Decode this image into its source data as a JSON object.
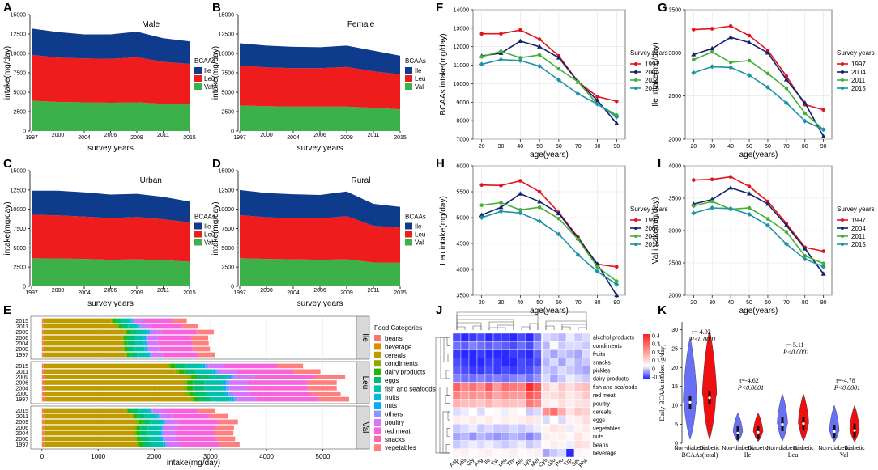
{
  "colors": {
    "Ile": "#0f3b8c",
    "Leu": "#ee1c1c",
    "Val": "#3cb14a",
    "y1997": "#e3121f",
    "y2004": "#14216b",
    "y2011": "#45b035",
    "y2015": "#1c93a6",
    "violinBlue": "#6870f5",
    "violinRed": "#ee1010"
  },
  "chart_data": [
    {
      "panel": "A",
      "type": "area",
      "title": "Male",
      "xlabel": "survey years",
      "ylabel": "intake(mg/day)",
      "ylim": [
        0,
        15000
      ],
      "yticks": [
        0,
        2500,
        5000,
        7500,
        10000,
        12500,
        15000
      ],
      "categories": [
        "1997",
        "2000",
        "2004",
        "2006",
        "2009",
        "2011",
        "2015"
      ],
      "legend_title": "BCAAs",
      "legend": [
        "Ile",
        "Leu",
        "Val"
      ],
      "series": [
        {
          "name": "Val",
          "values": [
            3900,
            3750,
            3700,
            3650,
            3700,
            3500,
            3450
          ]
        },
        {
          "name": "Leu",
          "values": [
            5900,
            5700,
            5650,
            5650,
            5800,
            5400,
            5200
          ]
        },
        {
          "name": "Ile",
          "values": [
            3400,
            3300,
            3100,
            3150,
            3300,
            3050,
            2900
          ]
        }
      ]
    },
    {
      "panel": "B",
      "type": "area",
      "title": "Female",
      "xlabel": "survey years",
      "ylabel": "intake(mg/day)",
      "ylim": [
        0,
        15000
      ],
      "yticks": [
        0,
        2500,
        5000,
        7500,
        10000,
        12500,
        15000
      ],
      "categories": [
        "1997",
        "2000",
        "2004",
        "2006",
        "2009",
        "2011",
        "2015"
      ],
      "legend_title": "BCAAs",
      "legend": [
        "Ile",
        "Leu",
        "Val"
      ],
      "series": [
        {
          "name": "Val",
          "values": [
            3300,
            3200,
            3150,
            3150,
            3150,
            3000,
            2800
          ]
        },
        {
          "name": "Leu",
          "values": [
            5150,
            5000,
            4950,
            4950,
            5100,
            4700,
            4500
          ]
        },
        {
          "name": "Ile",
          "values": [
            2850,
            2800,
            2750,
            2700,
            2750,
            2650,
            2400
          ]
        }
      ]
    },
    {
      "panel": "C",
      "type": "area",
      "title": "Urban",
      "xlabel": "survey years",
      "ylabel": "intake(mg/day)",
      "ylim": [
        0,
        15000
      ],
      "yticks": [
        0,
        2500,
        5000,
        7500,
        10000,
        12500,
        15000
      ],
      "categories": [
        "1997",
        "2000",
        "2004",
        "2006",
        "2009",
        "2011",
        "2015"
      ],
      "legend_title": "BCAAs",
      "legend": [
        "Ile",
        "Leu",
        "Val"
      ],
      "series": [
        {
          "name": "Val",
          "values": [
            3650,
            3600,
            3550,
            3450,
            3500,
            3400,
            3200
          ]
        },
        {
          "name": "Leu",
          "values": [
            5650,
            5600,
            5500,
            5400,
            5500,
            5300,
            5100
          ]
        },
        {
          "name": "Ile",
          "values": [
            3100,
            3200,
            3150,
            3050,
            3000,
            2900,
            2700
          ]
        }
      ]
    },
    {
      "panel": "D",
      "type": "area",
      "title": "Rural",
      "xlabel": "survey years",
      "ylabel": "intake(mg/day)",
      "ylim": [
        0,
        15000
      ],
      "yticks": [
        0,
        2500,
        5000,
        7500,
        10000,
        12500,
        15000
      ],
      "categories": [
        "1997",
        "2000",
        "2004",
        "2006",
        "2009",
        "2011",
        "2015"
      ],
      "legend_title": "BCAAs",
      "legend": [
        "Ile",
        "Leu",
        "Val"
      ],
      "series": [
        {
          "name": "Val",
          "values": [
            3650,
            3550,
            3500,
            3450,
            3500,
            3100,
            3050
          ]
        },
        {
          "name": "Leu",
          "values": [
            5600,
            5400,
            5350,
            5350,
            5600,
            4750,
            4550
          ]
        },
        {
          "name": "Ile",
          "values": [
            3250,
            3150,
            3100,
            3050,
            3200,
            2850,
            2700
          ]
        }
      ]
    },
    {
      "panel": "F",
      "type": "line",
      "xlabel": "age(years)",
      "ylabel": "BCAAs intake(mg/day)",
      "ylim": [
        7000,
        14000
      ],
      "yticks": [
        7000,
        8000,
        9000,
        10000,
        11000,
        12000,
        13000,
        14000
      ],
      "x": [
        20,
        30,
        40,
        50,
        60,
        70,
        80,
        90
      ],
      "legend_title": "Survey years",
      "series": [
        {
          "name": "1997",
          "values": [
            12700,
            12700,
            12900,
            12400,
            11500,
            10100,
            9300,
            9050
          ]
        },
        {
          "name": "2004",
          "values": [
            11500,
            11650,
            12300,
            12000,
            11400,
            10100,
            9100,
            7850
          ]
        },
        {
          "name": "2011",
          "values": [
            11450,
            11750,
            11400,
            11550,
            10800,
            10100,
            8900,
            8300
          ]
        },
        {
          "name": "2015",
          "values": [
            11050,
            11300,
            11250,
            10950,
            10200,
            9450,
            8900,
            8200
          ]
        }
      ]
    },
    {
      "panel": "G",
      "type": "line",
      "xlabel": "age(years)",
      "ylabel": "Ile intake(mg/day)",
      "ylim": [
        2000,
        3500
      ],
      "yticks": [
        2000,
        2500,
        3000,
        3500
      ],
      "x": [
        20,
        30,
        40,
        50,
        60,
        70,
        80,
        90
      ],
      "legend_title": "Survey years",
      "series": [
        {
          "name": "1997",
          "values": [
            3270,
            3280,
            3310,
            3200,
            3030,
            2730,
            2400,
            2340
          ]
        },
        {
          "name": "2004",
          "values": [
            2980,
            3050,
            3180,
            3120,
            3000,
            2690,
            2420,
            2030
          ]
        },
        {
          "name": "2011",
          "values": [
            2920,
            3010,
            2890,
            2910,
            2760,
            2590,
            2300,
            2110
          ]
        },
        {
          "name": "2015",
          "values": [
            2770,
            2840,
            2830,
            2740,
            2600,
            2420,
            2210,
            2110
          ]
        }
      ]
    },
    {
      "panel": "H",
      "type": "line",
      "xlabel": "age(years)",
      "ylabel": "Leu intake(mg/day)",
      "ylim": [
        3500,
        6000
      ],
      "yticks": [
        3500,
        4000,
        4500,
        5000,
        5500,
        6000
      ],
      "x": [
        20,
        30,
        40,
        50,
        60,
        70,
        80,
        90
      ],
      "legend_title": "Survey years",
      "series": [
        {
          "name": "1997",
          "values": [
            5630,
            5620,
            5710,
            5500,
            5100,
            4620,
            4100,
            4050
          ]
        },
        {
          "name": "2004",
          "values": [
            5050,
            5200,
            5460,
            5310,
            5080,
            4600,
            4100,
            3500
          ]
        },
        {
          "name": "2011",
          "values": [
            5240,
            5290,
            5150,
            5200,
            4980,
            4580,
            4050,
            3770
          ]
        },
        {
          "name": "2015",
          "values": [
            5000,
            5120,
            5090,
            4930,
            4680,
            4280,
            3960,
            3710
          ]
        }
      ]
    },
    {
      "panel": "I",
      "type": "line",
      "xlabel": "age(years)",
      "ylabel": "Val intake(mg/day)",
      "ylim": [
        2000,
        4000
      ],
      "yticks": [
        2000,
        2500,
        3000,
        3500,
        4000
      ],
      "x": [
        20,
        30,
        40,
        50,
        60,
        70,
        80,
        90
      ],
      "legend_title": "Survey years",
      "series": [
        {
          "name": "1997",
          "values": [
            3780,
            3790,
            3830,
            3680,
            3450,
            3110,
            2740,
            2680
          ]
        },
        {
          "name": "2004",
          "values": [
            3410,
            3480,
            3660,
            3570,
            3410,
            3080,
            2720,
            2330
          ]
        },
        {
          "name": "2011",
          "values": [
            3380,
            3450,
            3330,
            3350,
            3180,
            2980,
            2610,
            2490
          ]
        },
        {
          "name": "2015",
          "values": [
            3270,
            3350,
            3340,
            3250,
            3080,
            2790,
            2560,
            2440
          ]
        }
      ]
    },
    {
      "panel": "E",
      "type": "bar",
      "orientation": "horizontal",
      "stacked": true,
      "xlabel": "intake(mg/day)",
      "xlim": [
        0,
        5600
      ],
      "xticks": [
        0,
        1000,
        2000,
        3000,
        4000,
        5000
      ],
      "legend_title": "Food Categories",
      "categories_legend": [
        "beans",
        "beverage",
        "cereals",
        "condiments",
        "dairy products",
        "eggs",
        "fish and seafoods",
        "fruits",
        "nuts",
        "others",
        "poultry",
        "red meat",
        "snacks",
        "vegetables"
      ],
      "category_colors": [
        "#f8766d",
        "#e18a00",
        "#be9c00",
        "#8cab00",
        "#24b700",
        "#00be70",
        "#00c1ab",
        "#00bbda",
        "#00acfc",
        "#8b93ff",
        "#d575fe",
        "#f962dd",
        "#ff65ac",
        "#ff7f7f"
      ],
      "facets": [
        {
          "name": "Ile",
          "years": [
            "2015",
            "2011",
            "2009",
            "2006",
            "2004",
            "2000",
            "1997"
          ],
          "totals": [
            2580,
            2780,
            3060,
            2960,
            2970,
            2990,
            3080
          ]
        },
        {
          "name": "Leu",
          "years": [
            "2015",
            "2011",
            "2009",
            "2006",
            "2004",
            "2000",
            "1997"
          ],
          "totals": [
            4650,
            4960,
            5400,
            5250,
            5250,
            5320,
            5470
          ]
        },
        {
          "name": "Val",
          "years": [
            "2015",
            "2011",
            "2009",
            "2006",
            "2004",
            "2000",
            "1997"
          ],
          "totals": [
            3090,
            3320,
            3490,
            3420,
            3410,
            3440,
            3520
          ]
        }
      ],
      "composition_fractions": [
        0.006,
        0.004,
        0.47,
        0.012,
        0.02,
        0.04,
        0.06,
        0.005,
        0.008,
        0.012,
        0.06,
        0.2,
        0.005,
        0.098
      ]
    },
    {
      "panel": "J",
      "type": "heatmap",
      "rows": [
        "alcohol products",
        "condiments",
        "fruits",
        "snacks",
        "pickles",
        "dairy products",
        "fish and seafoods",
        "red meat",
        "poultry",
        "cereals",
        "eggs",
        "vegetables",
        "nuts",
        "beans",
        "beverage"
      ],
      "columns": [
        "Asp",
        "His",
        "Gly",
        "Arg",
        "Ile",
        "Tyr",
        "Leu",
        "Thr",
        "Ala",
        "Lys",
        "Met",
        "Cys",
        "Glu",
        "Pro",
        "Trp",
        "Ser",
        "Phe"
      ],
      "colorbar_ticks": [
        "0.4",
        "0.3",
        "0.2",
        "0.1",
        "0",
        "-0.1"
      ],
      "values": [
        [
          -0.1,
          -0.12,
          -0.11,
          -0.1,
          -0.12,
          -0.11,
          -0.11,
          -0.12,
          -0.1,
          -0.12,
          -0.08,
          -0.02,
          -0.03,
          -0.04,
          -0.01,
          -0.03,
          -0.02
        ],
        [
          -0.08,
          -0.09,
          -0.07,
          -0.08,
          -0.09,
          -0.08,
          -0.09,
          -0.1,
          -0.08,
          -0.1,
          -0.06,
          -0.04,
          0.01,
          -0.03,
          -0.02,
          -0.02,
          -0.03
        ],
        [
          -0.11,
          -0.12,
          -0.12,
          -0.11,
          -0.12,
          -0.12,
          -0.13,
          -0.11,
          -0.11,
          -0.12,
          -0.09,
          -0.03,
          -0.05,
          -0.03,
          -0.04,
          -0.05,
          -0.02
        ],
        [
          -0.1,
          -0.11,
          -0.12,
          -0.12,
          -0.11,
          -0.11,
          -0.12,
          -0.12,
          -0.1,
          -0.11,
          -0.1,
          -0.04,
          -0.02,
          -0.05,
          -0.02,
          -0.04,
          -0.03
        ],
        [
          -0.09,
          -0.1,
          -0.11,
          -0.11,
          -0.1,
          -0.11,
          -0.1,
          -0.11,
          -0.1,
          -0.1,
          -0.08,
          -0.03,
          -0.04,
          -0.02,
          -0.03,
          -0.04,
          -0.05
        ],
        [
          -0.07,
          -0.08,
          -0.08,
          -0.07,
          -0.08,
          -0.07,
          -0.08,
          -0.07,
          -0.06,
          -0.08,
          -0.06,
          -0.02,
          -0.05,
          -0.03,
          -0.01,
          -0.02,
          -0.03
        ],
        [
          0.28,
          0.22,
          0.25,
          0.2,
          0.3,
          0.18,
          0.26,
          0.24,
          0.22,
          0.38,
          0.3,
          0.08,
          0.04,
          0.1,
          0.06,
          0.1,
          0.12
        ],
        [
          0.22,
          0.18,
          0.2,
          0.18,
          0.22,
          0.16,
          0.2,
          0.18,
          0.18,
          0.3,
          0.26,
          0.05,
          0.06,
          0.08,
          0.04,
          0.06,
          0.1
        ],
        [
          0.14,
          0.12,
          0.12,
          0.1,
          0.14,
          0.1,
          0.12,
          0.11,
          0.1,
          0.24,
          0.2,
          0.04,
          0.02,
          0.06,
          0.03,
          0.05,
          0.06
        ],
        [
          -0.02,
          -0.01,
          0.0,
          -0.02,
          0.0,
          0.01,
          -0.01,
          0.02,
          0.0,
          -0.03,
          -0.02,
          0.2,
          0.26,
          0.15,
          0.05,
          0.1,
          0.08
        ],
        [
          0.03,
          0.02,
          0.04,
          0.02,
          0.04,
          0.01,
          0.03,
          0.02,
          0.03,
          0.05,
          0.04,
          -0.02,
          0.0,
          -0.02,
          0.02,
          0.03,
          0.06
        ],
        [
          -0.03,
          -0.02,
          -0.01,
          -0.03,
          -0.02,
          -0.03,
          -0.03,
          -0.02,
          -0.03,
          -0.02,
          -0.01,
          0.02,
          0.05,
          0.04,
          -0.01,
          0.02,
          0.04
        ],
        [
          -0.05,
          -0.04,
          -0.06,
          -0.04,
          -0.05,
          -0.06,
          -0.05,
          -0.04,
          -0.05,
          -0.07,
          -0.05,
          0.03,
          0.02,
          0.03,
          0.01,
          0.05,
          0.02
        ],
        [
          -0.03,
          -0.02,
          -0.01,
          -0.02,
          -0.01,
          -0.02,
          -0.03,
          -0.02,
          -0.01,
          -0.03,
          -0.02,
          0.01,
          0.03,
          0.02,
          -0.01,
          0.06,
          0.05
        ],
        [
          0.02,
          0.03,
          0.01,
          0.02,
          0.03,
          0.01,
          0.02,
          0.03,
          0.01,
          0.02,
          0.03,
          -0.05,
          -0.03,
          -0.02,
          -0.15,
          0.02,
          0.01
        ]
      ]
    },
    {
      "panel": "K",
      "type": "violin",
      "ylabel": "Daily BCAAs intakes (g/day)",
      "yticks": [
        0,
        5,
        10,
        15,
        20,
        25,
        30
      ],
      "ylim": [
        0,
        32
      ],
      "groups": [
        {
          "label": "Non-diabetic",
          "group": "BCAAs(total)",
          "median": 10.8,
          "color": "blue"
        },
        {
          "label": "Diabetic",
          "group": "BCAAs(total)",
          "median": 12.0,
          "color": "red"
        },
        {
          "label": "Non-diabetic",
          "group": "Ile",
          "median": 2.7,
          "color": "blue"
        },
        {
          "label": "Diabetic",
          "group": "Ile",
          "median": 2.9,
          "color": "red"
        },
        {
          "label": "Non-diabetic",
          "group": "Leu",
          "median": 5.0,
          "color": "blue"
        },
        {
          "label": "Diabetic",
          "group": "Leu",
          "median": 5.2,
          "color": "red"
        },
        {
          "label": "Non-diabetic",
          "group": "Val",
          "median": 3.1,
          "color": "blue"
        },
        {
          "label": "Diabetic",
          "group": "Val",
          "median": 3.4,
          "color": "red"
        }
      ],
      "group_labels": [
        "BCAAs(total)",
        "Ile",
        "Leu",
        "Val"
      ],
      "stats": [
        {
          "t": "t=-4.92",
          "p": "P<0.0001"
        },
        {
          "t": "t=-4.62",
          "p": "P<0.0001"
        },
        {
          "t": "t=-5.11",
          "p": "P<0.0001"
        },
        {
          "t": "t=-4.78",
          "p": "P<0.0001"
        }
      ]
    }
  ]
}
